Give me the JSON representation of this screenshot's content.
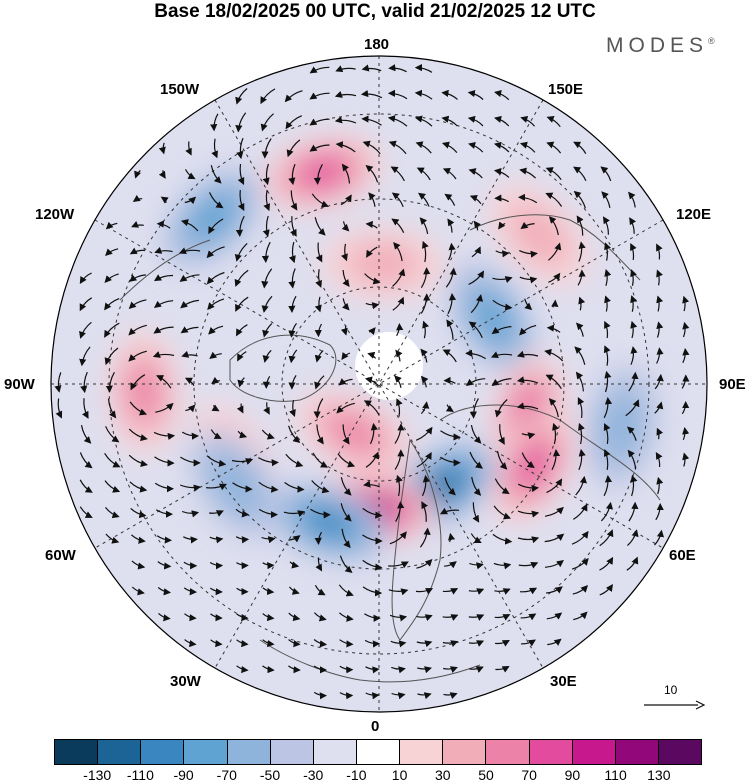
{
  "title": "Base 18/02/2025 00 UTC, valid 21/02/2025 12 UTC",
  "brand": "MODES",
  "brand_mark": "®",
  "longitude_labels": {
    "top": "180",
    "bottom": "0",
    "left": "90W",
    "right": "90E",
    "upper_left": "150W",
    "upper_right": "150E",
    "mid_upper_left": "120W",
    "mid_upper_right": "120E",
    "mid_lower_left": "60W",
    "mid_lower_right": "60E",
    "lower_left": "30W",
    "lower_right": "30E"
  },
  "reference_vector": {
    "label": "10"
  },
  "colorbar": {
    "colors": [
      "#0a3b5c",
      "#1c6496",
      "#3a86c0",
      "#5fa3d3",
      "#8fb4dc",
      "#bcc6e4",
      "#dedfef",
      "#ffffff",
      "#f8d3d6",
      "#f1aeb9",
      "#ec82a8",
      "#e34c9e",
      "#c7198d",
      "#92077a",
      "#5b0860"
    ],
    "tick_labels": [
      "-130",
      "-110",
      "-90",
      "-70",
      "-50",
      "-30",
      "-10",
      "10",
      "30",
      "50",
      "70",
      "90",
      "110",
      "130"
    ]
  },
  "anomaly_features": [
    {
      "sign": "positive",
      "strength": 4,
      "lon": -165,
      "colat": 40
    },
    {
      "sign": "negative",
      "strength": 3,
      "lon": -135,
      "colat": 43
    },
    {
      "sign": "positive",
      "strength": 2,
      "lon": 178,
      "colat": 22
    },
    {
      "sign": "negative",
      "strength": 3,
      "lon": 120,
      "colat": 24
    },
    {
      "sign": "positive",
      "strength": 2,
      "lon": 133,
      "colat": 40
    },
    {
      "sign": "positive",
      "strength": 3,
      "lon": -88,
      "colat": 43
    },
    {
      "sign": "positive",
      "strength": 4,
      "lon": 78,
      "colat": 28
    },
    {
      "sign": "positive",
      "strength": 4,
      "lon": 62,
      "colat": 32
    },
    {
      "sign": "positive",
      "strength": 3,
      "lon": -27,
      "colat": 10
    },
    {
      "sign": "positive",
      "strength": 2,
      "lon": -62,
      "colat": 30
    },
    {
      "sign": "negative",
      "strength": 5,
      "lon": 32,
      "colat": 22
    },
    {
      "sign": "positive",
      "strength": 6,
      "lon": -3,
      "colat": 23
    },
    {
      "sign": "negative",
      "strength": 4,
      "lon": -20,
      "colat": 27
    },
    {
      "sign": "negative",
      "strength": 2,
      "lon": -55,
      "colat": 32
    },
    {
      "sign": "negative",
      "strength": 2,
      "lon": 80,
      "colat": 45
    }
  ]
}
